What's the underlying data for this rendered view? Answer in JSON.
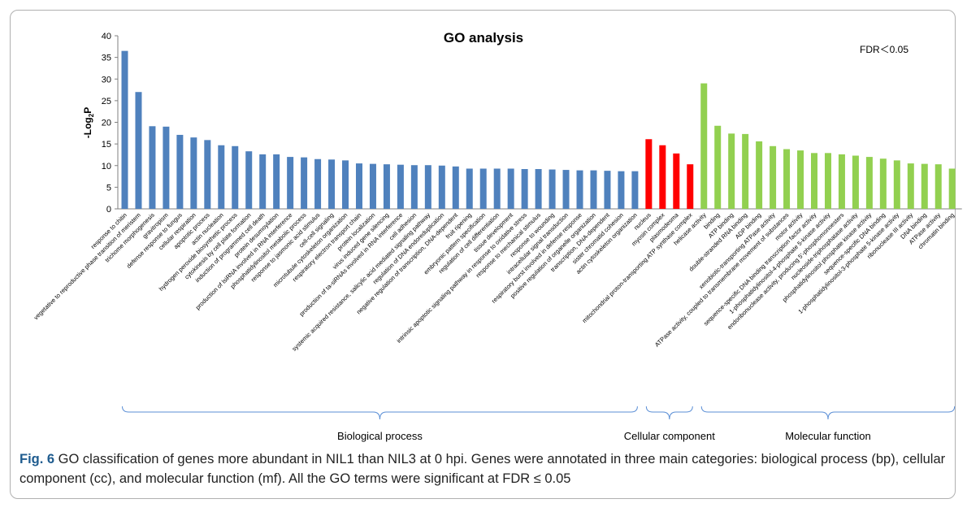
{
  "chart_data": {
    "type": "bar",
    "title": "GO analysis",
    "annotation": "FDR＜0.05",
    "ylabel": "-Log",
    "ylabel_sub": "2",
    "ylabel_tail": "P",
    "ylim": [
      0,
      40
    ],
    "yticks": [
      "0",
      "5",
      "10",
      "15",
      "20",
      "25",
      "30",
      "35",
      "40"
    ],
    "grid": false,
    "categories": [
      "response to chitin",
      "vegetative to reproductive phase transition of meristem",
      "trichome morphogenesis",
      "gravitropism",
      "defense response to fungus",
      "cellular respiration",
      "apoptotic process",
      "actin nucleation",
      "hydrogen peroxide biosynthetic process",
      "cytokinesis by cell plate formation",
      "induction of programmed cell death",
      "protein desumoylation",
      "production of lsiRNA involved in RNA interference",
      "phosphatidylinositol metabolic process",
      "response to jasmonic acid stimulus",
      "cell-cell signaling",
      "microtubule cytoskeleton organization",
      "respiratory electron transport chain",
      "protein localization",
      "virus induced gene silencing",
      "production of ta-siRNAs involved in RNA interference",
      "cell adhesion",
      "systemic acquired resistance, salicylic acid mediated signaling pathway",
      "regulation of DNA endoreduplication",
      "negative regulation of transcription, DNA-dependent",
      "fruit ripening",
      "embryonic pattern specification",
      "regulation of cell differentiation",
      "tissue development",
      "intrinsic apoptotic signaling pathway in response to oxidative stress",
      "response to mechanical stimulus",
      "response to wounding",
      "intracellular signal transduction",
      "respiratory burst involved in defense response",
      "positive regulation of organelle organization",
      "transcription, DNA-dependent",
      "sister chromatid cohesion",
      "actin cytoskeleton organization",
      "nucleus",
      "myosin complex",
      "plasmodesma",
      "mitochondrial proton-transporting ATP synthase complex",
      "helicase activity",
      "binding",
      "ATP binding",
      "double-stranded RNA binding",
      "ADP binding",
      "xenobiotic-transporting ATPase activity",
      "ATPase activity, coupled to transmembrane movement of substances",
      "motor activity",
      "sequence-specific DNA binding transcription factor activity",
      "1-phosphatidylinositol-4-phosphate 5-kinase activity",
      "endoribonuclease activity, producing 5'-phosphomonoesters",
      "nucleoside-triphosphatase activity",
      "phosphatidylinositol phosphate kinase activity",
      "sequence-specific DNA binding",
      "1-phosphatidylinositol-3-phosphate 5-kinase activity",
      "ribonuclease III activity",
      "DNA binding",
      "ATPase activity",
      "chromatin binding"
    ],
    "values": [
      36.5,
      27,
      19.1,
      19,
      17.1,
      16.5,
      15.9,
      14.7,
      14.5,
      13.3,
      12.6,
      12.6,
      12,
      11.9,
      11.5,
      11.4,
      11.2,
      10.5,
      10.4,
      10.3,
      10.2,
      10.1,
      10.1,
      10,
      9.8,
      9.3,
      9.3,
      9.3,
      9.3,
      9.2,
      9.2,
      9.1,
      9,
      8.9,
      8.9,
      8.8,
      8.7,
      8.7,
      16.1,
      14.7,
      12.8,
      10.3,
      29,
      19.2,
      17.4,
      17.3,
      15.6,
      14.5,
      13.8,
      13.5,
      12.9,
      12.9,
      12.6,
      12.3,
      12,
      11.6,
      11.2,
      10.5,
      10.4,
      10.3,
      9.3
    ],
    "series_colors": [
      "#4f81bd",
      "#ff0000",
      "#92d050"
    ],
    "groups": [
      {
        "name": "Biological process",
        "start": 0,
        "end": 37,
        "color": "#4f81bd"
      },
      {
        "name": "Cellular component",
        "start": 38,
        "end": 41,
        "color": "#ff0000"
      },
      {
        "name": "Molecular function",
        "start": 42,
        "end": 60,
        "color": "#92d050"
      }
    ],
    "bracket_color": "#5b8fd6"
  },
  "caption": {
    "label": "Fig. 6",
    "text": " GO classification of genes more abundant in NIL1 than NIL3 at 0 hpi. Genes were annotated in three main categories: biological process (bp), cellular component (cc), and molecular function (mf). All the GO terms were significant at FDR ≤ 0.05"
  }
}
